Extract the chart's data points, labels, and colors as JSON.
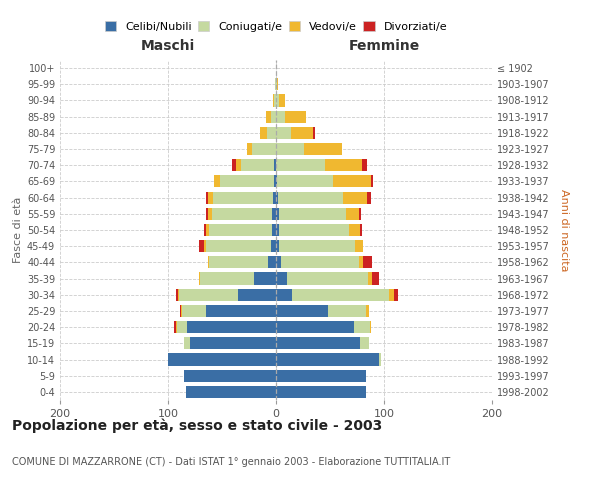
{
  "age_groups": [
    "0-4",
    "5-9",
    "10-14",
    "15-19",
    "20-24",
    "25-29",
    "30-34",
    "35-39",
    "40-44",
    "45-49",
    "50-54",
    "55-59",
    "60-64",
    "65-69",
    "70-74",
    "75-79",
    "80-84",
    "85-89",
    "90-94",
    "95-99",
    "100+"
  ],
  "birth_years": [
    "1998-2002",
    "1993-1997",
    "1988-1992",
    "1983-1987",
    "1978-1982",
    "1973-1977",
    "1968-1972",
    "1963-1967",
    "1958-1962",
    "1953-1957",
    "1948-1952",
    "1943-1947",
    "1938-1942",
    "1933-1937",
    "1928-1932",
    "1923-1927",
    "1918-1922",
    "1913-1917",
    "1908-1912",
    "1903-1907",
    "≤ 1902"
  ],
  "males": {
    "celibi": [
      83,
      85,
      100,
      80,
      82,
      65,
      35,
      20,
      7,
      5,
      4,
      4,
      3,
      2,
      2,
      0,
      0,
      0,
      0,
      0,
      0
    ],
    "coniugati": [
      0,
      0,
      0,
      5,
      10,
      22,
      55,
      50,
      55,
      60,
      58,
      55,
      55,
      50,
      30,
      22,
      8,
      5,
      2,
      1,
      0
    ],
    "vedovi": [
      0,
      0,
      0,
      0,
      1,
      1,
      1,
      1,
      1,
      2,
      3,
      4,
      5,
      5,
      5,
      5,
      7,
      4,
      1,
      0,
      0
    ],
    "divorziati": [
      0,
      0,
      0,
      0,
      1,
      1,
      2,
      0,
      0,
      4,
      2,
      2,
      2,
      0,
      4,
      0,
      0,
      0,
      0,
      0,
      0
    ]
  },
  "females": {
    "nubili": [
      83,
      83,
      95,
      78,
      72,
      48,
      15,
      10,
      5,
      3,
      3,
      3,
      2,
      1,
      0,
      0,
      0,
      0,
      0,
      0,
      0
    ],
    "coniugate": [
      0,
      0,
      2,
      8,
      15,
      35,
      90,
      75,
      72,
      70,
      65,
      62,
      60,
      52,
      45,
      26,
      14,
      8,
      3,
      1,
      0
    ],
    "vedove": [
      0,
      0,
      0,
      0,
      1,
      3,
      4,
      4,
      4,
      8,
      10,
      12,
      22,
      35,
      35,
      35,
      20,
      20,
      5,
      1,
      0
    ],
    "divorziate": [
      0,
      0,
      0,
      0,
      0,
      0,
      4,
      6,
      8,
      0,
      2,
      2,
      4,
      2,
      4,
      0,
      2,
      0,
      0,
      0,
      0
    ]
  },
  "colors": {
    "celibi_nubili": "#3a6ea5",
    "coniugati": "#c5d9a0",
    "vedovi": "#f0b830",
    "divorziati": "#cc2222"
  },
  "xlim": 200,
  "title": "Popolazione per età, sesso e stato civile - 2003",
  "subtitle": "COMUNE DI MAZZARRONE (CT) - Dati ISTAT 1° gennaio 2003 - Elaborazione TUTTITALIA.IT",
  "ylabel_left": "Fasce di età",
  "ylabel_right": "Anni di nascita",
  "xlabel_left": "Maschi",
  "xlabel_right": "Femmine",
  "legend_labels": [
    "Celibi/Nubili",
    "Coniugati/e",
    "Vedovi/e",
    "Divorziati/e"
  ],
  "background_color": "#ffffff",
  "grid_color": "#cccccc"
}
